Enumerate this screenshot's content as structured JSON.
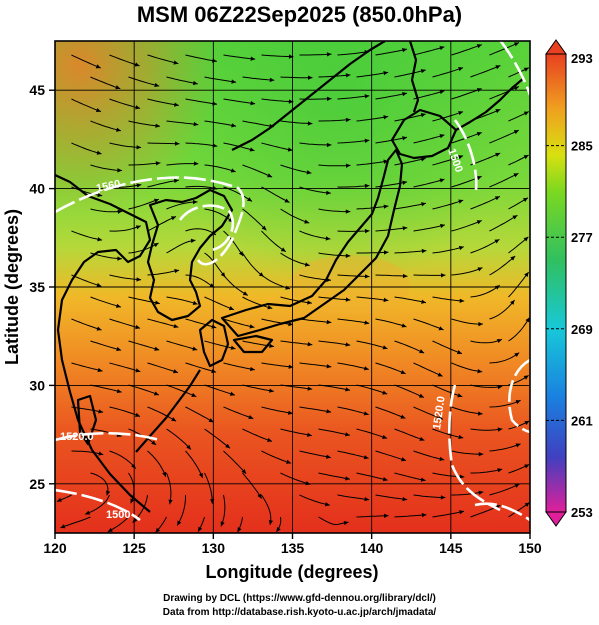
{
  "title": "MSM 06Z22Sep2025 (850.0hPa)",
  "x_axis": {
    "label": "Longitude (degrees)",
    "ticks": [
      "120",
      "125",
      "130",
      "135",
      "140",
      "145",
      "150"
    ],
    "tick_values": [
      120,
      125,
      130,
      135,
      140,
      145,
      150
    ],
    "range": [
      120,
      150
    ]
  },
  "y_axis": {
    "label": "Latitude  (degrees)",
    "ticks": [
      "25",
      "30",
      "35",
      "40",
      "45"
    ],
    "tick_values": [
      25,
      30,
      35,
      40,
      45
    ],
    "range": [
      22.5,
      47.5
    ]
  },
  "colorbar": {
    "labels": [
      "293",
      "285",
      "277",
      "269",
      "261",
      "253"
    ],
    "range": [
      253,
      293
    ],
    "colors": [
      "#e0209a",
      "#4040c0",
      "#1a80e0",
      "#18c8d8",
      "#30c060",
      "#7cd820",
      "#d8e010",
      "#f0a020",
      "#e84020"
    ]
  },
  "contour_labels": [
    "1560",
    "1500",
    "1520.0",
    "1520.0",
    "1500"
  ],
  "credits": {
    "line1": "Drawing by DCL (https://www.gfd-dennou.org/library/dcl/)",
    "line2": "Data from http://database.rish.kyoto-u.ac.jp/arch/jmadata/"
  },
  "colors": {
    "warm": "#e84a1e",
    "orange": "#f0a024",
    "yellow_green": "#b8d838",
    "green": "#5cd23c",
    "contour": "#ffffff",
    "coast": "#000000"
  }
}
